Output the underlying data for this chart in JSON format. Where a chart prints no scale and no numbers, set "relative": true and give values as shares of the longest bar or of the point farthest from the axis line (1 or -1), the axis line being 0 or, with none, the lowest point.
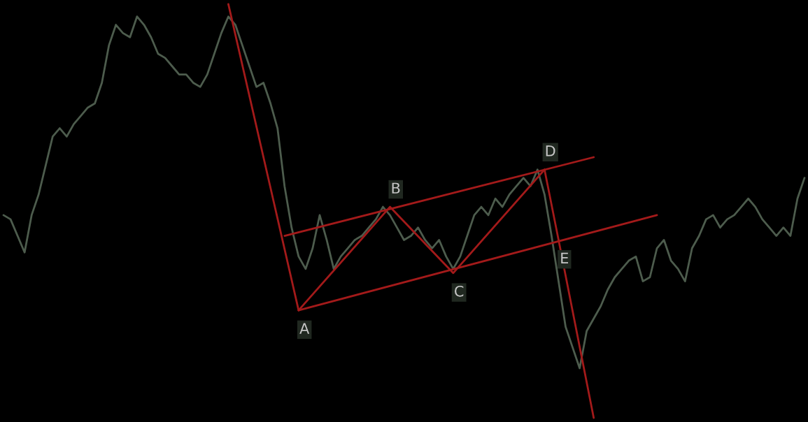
{
  "chart_data": {
    "type": "line",
    "relative": true,
    "categories": [
      null,
      null,
      null,
      null,
      null,
      null,
      null,
      null,
      null,
      null,
      null,
      null,
      null,
      null,
      null,
      null,
      null,
      null,
      null,
      null,
      null,
      null,
      null,
      null,
      null,
      null,
      null,
      null,
      null,
      null,
      null,
      null,
      null,
      null,
      null,
      null,
      null,
      null,
      null,
      null,
      null,
      null,
      null,
      null,
      null,
      null,
      null,
      null,
      null,
      null,
      null,
      null,
      null,
      null,
      null,
      null,
      null,
      null,
      null,
      null,
      null,
      null,
      null,
      null,
      null,
      null,
      null,
      null,
      null,
      null,
      null,
      null,
      null,
      null,
      null,
      null,
      null,
      null,
      null,
      null,
      null,
      null,
      null,
      null,
      null,
      null,
      null,
      null,
      null,
      null,
      null,
      null,
      null,
      null,
      null,
      null,
      null,
      null,
      null,
      null,
      null,
      null,
      null,
      null,
      null,
      null,
      null,
      null,
      null,
      null,
      null,
      null,
      null,
      null,
      null
    ],
    "series": [
      {
        "color": "#4d5c4d",
        "values": [
          0.49,
          0.48,
          0.44,
          0.4,
          0.49,
          0.54,
          0.61,
          0.68,
          0.7,
          0.68,
          0.71,
          0.73,
          0.75,
          0.76,
          0.81,
          0.9,
          0.95,
          0.93,
          0.92,
          0.97,
          0.95,
          0.92,
          0.88,
          0.87,
          0.85,
          0.83,
          0.83,
          0.81,
          0.8,
          0.83,
          0.88,
          0.93,
          0.97,
          0.95,
          0.9,
          0.85,
          0.8,
          0.81,
          0.76,
          0.7,
          0.56,
          0.46,
          0.39,
          0.36,
          0.41,
          0.49,
          0.43,
          0.36,
          0.39,
          0.41,
          0.43,
          0.44,
          0.46,
          0.48,
          0.51,
          0.49,
          0.46,
          0.43,
          0.44,
          0.46,
          0.43,
          0.41,
          0.43,
          0.39,
          0.36,
          0.39,
          0.44,
          0.49,
          0.51,
          0.49,
          0.53,
          0.51,
          0.54,
          0.56,
          0.58,
          0.56,
          0.6,
          0.54,
          0.44,
          0.33,
          0.22,
          0.17,
          0.12,
          0.21,
          0.24,
          0.27,
          0.31,
          0.34,
          0.36,
          0.38,
          0.39,
          0.33,
          0.34,
          0.41,
          0.43,
          0.38,
          0.36,
          0.33,
          0.41,
          0.44,
          0.48,
          0.49,
          0.46,
          0.48,
          0.49,
          0.51,
          0.53,
          0.51,
          0.48,
          0.46,
          0.44,
          0.46,
          0.44,
          0.53,
          0.58
        ]
      },
      {
        "color": "#a31a1a",
        "values": [
          null,
          null,
          null,
          null,
          null,
          null,
          null,
          null,
          null,
          null,
          null,
          null,
          null,
          null,
          null,
          null,
          null,
          null,
          null,
          null,
          null,
          null,
          null,
          null,
          null,
          null,
          null,
          null,
          null,
          null,
          null,
          null,
          1.0,
          null,
          null,
          null,
          null,
          null,
          null,
          null,
          null,
          null,
          0.26,
          null,
          null,
          null,
          null,
          null,
          null,
          null,
          null,
          null,
          null,
          null,
          null,
          null,
          null,
          null,
          null,
          null,
          null,
          null,
          null,
          null,
          null,
          null,
          null,
          null,
          null,
          null,
          null,
          null,
          null,
          null,
          null,
          null,
          null,
          null,
          null,
          null,
          null,
          null,
          null,
          null,
          null,
          null,
          null,
          null,
          null,
          null,
          null,
          null,
          null,
          null,
          null,
          null,
          null,
          null,
          null,
          null,
          null,
          null,
          null,
          null,
          null,
          null,
          null,
          null,
          null,
          null,
          null,
          null,
          null,
          null,
          null
        ]
      },
      {
        "color": "#a31a1a",
        "values": [
          null,
          null,
          null,
          null,
          null,
          null,
          null,
          null,
          null,
          null,
          null,
          null,
          null,
          null,
          null,
          null,
          null,
          null,
          null,
          null,
          null,
          null,
          null,
          null,
          null,
          null,
          null,
          null,
          null,
          null,
          null,
          null,
          null,
          null,
          null,
          null,
          null,
          null,
          null,
          null,
          null,
          null,
          0.26,
          null,
          null,
          null,
          null,
          null,
          null,
          null,
          null,
          null,
          null,
          null,
          null,
          0.51,
          null,
          null,
          null,
          null,
          null,
          null,
          null,
          null,
          0.35,
          null,
          null,
          null,
          null,
          null,
          null,
          null,
          null,
          null,
          null,
          null,
          null,
          0.6,
          null,
          null,
          null,
          null,
          null,
          null,
          null,
          null,
          null,
          null,
          null,
          null,
          null,
          null,
          null,
          null,
          null,
          null,
          null,
          null,
          null,
          null,
          null,
          null,
          null,
          null,
          null,
          null,
          null,
          null,
          null,
          null,
          null,
          null,
          null,
          null,
          null
        ]
      },
      {
        "color": "#a31a1a",
        "values": [
          null,
          null,
          null,
          null,
          null,
          null,
          null,
          null,
          null,
          null,
          null,
          null,
          null,
          null,
          null,
          null,
          null,
          null,
          null,
          null,
          null,
          null,
          null,
          null,
          null,
          null,
          null,
          null,
          null,
          null,
          null,
          null,
          null,
          null,
          null,
          null,
          null,
          null,
          null,
          null,
          0.44,
          null,
          null,
          null,
          null,
          null,
          null,
          null,
          null,
          null,
          null,
          null,
          null,
          null,
          null,
          null,
          null,
          null,
          null,
          null,
          null,
          null,
          null,
          null,
          null,
          null,
          null,
          null,
          null,
          null,
          null,
          null,
          null,
          null,
          null,
          null,
          null,
          null,
          null,
          null,
          null,
          null,
          null,
          null,
          0.63,
          null,
          null,
          null,
          null,
          null,
          null,
          null,
          null,
          null,
          null,
          null,
          null,
          null,
          null,
          null,
          null,
          null,
          null,
          null,
          null,
          null,
          null,
          null,
          null,
          null,
          null,
          null,
          null,
          null,
          null
        ]
      },
      {
        "color": "#a31a1a",
        "values": [
          null,
          null,
          null,
          null,
          null,
          null,
          null,
          null,
          null,
          null,
          null,
          null,
          null,
          null,
          null,
          null,
          null,
          null,
          null,
          null,
          null,
          null,
          null,
          null,
          null,
          null,
          null,
          null,
          null,
          null,
          null,
          null,
          null,
          null,
          null,
          null,
          null,
          null,
          null,
          null,
          null,
          null,
          0.26,
          null,
          null,
          null,
          null,
          null,
          null,
          null,
          null,
          null,
          null,
          null,
          null,
          null,
          null,
          null,
          null,
          null,
          null,
          null,
          null,
          null,
          null,
          null,
          null,
          null,
          null,
          null,
          null,
          null,
          null,
          null,
          null,
          null,
          null,
          null,
          null,
          null,
          null,
          null,
          null,
          null,
          null,
          null,
          null,
          null,
          null,
          null,
          null,
          null,
          null,
          0.49,
          null,
          null,
          null,
          null,
          null,
          null,
          null,
          null,
          null,
          null,
          null,
          null,
          null,
          null,
          null,
          null,
          null,
          null,
          null,
          null,
          null
        ]
      },
      {
        "color": "#a31a1a",
        "values": [
          null,
          null,
          null,
          null,
          null,
          null,
          null,
          null,
          null,
          null,
          null,
          null,
          null,
          null,
          null,
          null,
          null,
          null,
          null,
          null,
          null,
          null,
          null,
          null,
          null,
          null,
          null,
          null,
          null,
          null,
          null,
          null,
          null,
          null,
          null,
          null,
          null,
          null,
          null,
          null,
          null,
          null,
          null,
          null,
          null,
          null,
          null,
          null,
          null,
          null,
          null,
          null,
          null,
          null,
          null,
          null,
          null,
          null,
          null,
          null,
          null,
          null,
          null,
          null,
          null,
          null,
          null,
          null,
          null,
          null,
          null,
          null,
          null,
          null,
          null,
          null,
          null,
          0.6,
          null,
          0.43,
          null,
          null,
          null,
          null,
          0.0,
          null,
          null,
          null,
          null,
          null,
          null,
          null,
          null,
          null,
          null,
          null,
          null,
          null,
          null,
          null,
          null,
          null,
          null,
          null,
          null,
          null,
          null,
          null,
          null,
          null,
          null,
          null,
          null,
          null,
          null
        ]
      }
    ],
    "annotations": [
      {
        "text": "A",
        "y": 0.26
      },
      {
        "text": "B",
        "y": 0.51
      },
      {
        "text": "C",
        "y": 0.35
      },
      {
        "text": "D",
        "y": 0.6
      },
      {
        "text": "E",
        "y": 0.43
      }
    ]
  }
}
